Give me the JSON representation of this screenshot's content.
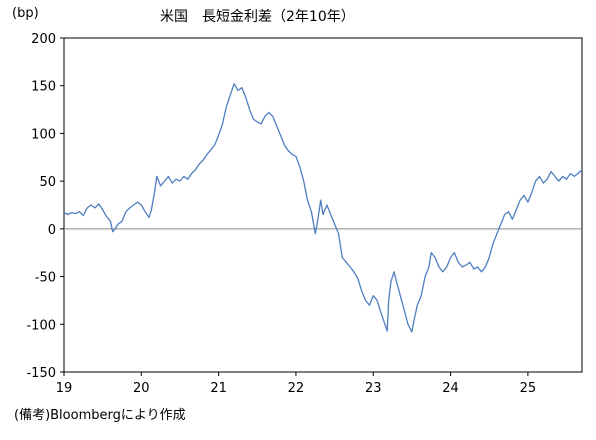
{
  "chart_data": {
    "type": "line",
    "title": "米国　長短金利差（2年10年）",
    "ylabel": "(bp)",
    "xlabel": "",
    "source": "(備考)Bloombergにより作成",
    "xlim": [
      2019.0,
      2025.7
    ],
    "ylim": [
      -150,
      200
    ],
    "yticks": [
      -150,
      -100,
      -50,
      0,
      50,
      100,
      150,
      200
    ],
    "xticks": [
      {
        "label": "19",
        "pos": 2019.0
      },
      {
        "label": "20",
        "pos": 2020.0
      },
      {
        "label": "21",
        "pos": 2021.0
      },
      {
        "label": "22",
        "pos": 2022.0
      },
      {
        "label": "23",
        "pos": 2023.0
      },
      {
        "label": "24",
        "pos": 2024.0
      },
      {
        "label": "25",
        "pos": 2025.0
      }
    ],
    "grid": false,
    "zero_line": true,
    "line_color": "#4F7EBE",
    "axis_color": "#000000",
    "zero_line_color": "#888888",
    "series": [
      {
        "values": [
          [
            2019.0,
            17
          ],
          [
            2019.05,
            15
          ],
          [
            2019.1,
            17
          ],
          [
            2019.15,
            16
          ],
          [
            2019.2,
            18
          ],
          [
            2019.25,
            14
          ],
          [
            2019.3,
            22
          ],
          [
            2019.35,
            25
          ],
          [
            2019.4,
            22
          ],
          [
            2019.45,
            26
          ],
          [
            2019.5,
            20
          ],
          [
            2019.55,
            13
          ],
          [
            2019.6,
            8
          ],
          [
            2019.63,
            -3
          ],
          [
            2019.66,
            0
          ],
          [
            2019.7,
            5
          ],
          [
            2019.75,
            8
          ],
          [
            2019.8,
            18
          ],
          [
            2019.85,
            22
          ],
          [
            2019.9,
            25
          ],
          [
            2019.95,
            28
          ],
          [
            2020.0,
            25
          ],
          [
            2020.05,
            18
          ],
          [
            2020.1,
            12
          ],
          [
            2020.13,
            20
          ],
          [
            2020.17,
            38
          ],
          [
            2020.2,
            55
          ],
          [
            2020.25,
            45
          ],
          [
            2020.3,
            50
          ],
          [
            2020.35,
            55
          ],
          [
            2020.4,
            48
          ],
          [
            2020.45,
            52
          ],
          [
            2020.5,
            50
          ],
          [
            2020.55,
            55
          ],
          [
            2020.6,
            52
          ],
          [
            2020.65,
            58
          ],
          [
            2020.7,
            62
          ],
          [
            2020.75,
            68
          ],
          [
            2020.8,
            72
          ],
          [
            2020.85,
            78
          ],
          [
            2020.9,
            83
          ],
          [
            2020.95,
            88
          ],
          [
            2021.0,
            98
          ],
          [
            2021.05,
            110
          ],
          [
            2021.1,
            128
          ],
          [
            2021.15,
            140
          ],
          [
            2021.2,
            152
          ],
          [
            2021.25,
            145
          ],
          [
            2021.3,
            148
          ],
          [
            2021.35,
            138
          ],
          [
            2021.4,
            125
          ],
          [
            2021.45,
            115
          ],
          [
            2021.5,
            112
          ],
          [
            2021.55,
            110
          ],
          [
            2021.6,
            118
          ],
          [
            2021.65,
            122
          ],
          [
            2021.7,
            118
          ],
          [
            2021.75,
            108
          ],
          [
            2021.8,
            98
          ],
          [
            2021.85,
            88
          ],
          [
            2021.9,
            82
          ],
          [
            2021.95,
            78
          ],
          [
            2022.0,
            76
          ],
          [
            2022.05,
            65
          ],
          [
            2022.1,
            50
          ],
          [
            2022.15,
            30
          ],
          [
            2022.2,
            18
          ],
          [
            2022.25,
            -5
          ],
          [
            2022.28,
            8
          ],
          [
            2022.32,
            30
          ],
          [
            2022.35,
            15
          ],
          [
            2022.4,
            25
          ],
          [
            2022.45,
            15
          ],
          [
            2022.5,
            5
          ],
          [
            2022.55,
            -5
          ],
          [
            2022.6,
            -30
          ],
          [
            2022.65,
            -35
          ],
          [
            2022.7,
            -40
          ],
          [
            2022.75,
            -45
          ],
          [
            2022.8,
            -52
          ],
          [
            2022.85,
            -65
          ],
          [
            2022.9,
            -75
          ],
          [
            2022.95,
            -80
          ],
          [
            2023.0,
            -70
          ],
          [
            2023.05,
            -75
          ],
          [
            2023.1,
            -88
          ],
          [
            2023.15,
            -100
          ],
          [
            2023.18,
            -107
          ],
          [
            2023.2,
            -75
          ],
          [
            2023.23,
            -55
          ],
          [
            2023.27,
            -45
          ],
          [
            2023.3,
            -55
          ],
          [
            2023.35,
            -70
          ],
          [
            2023.4,
            -85
          ],
          [
            2023.45,
            -100
          ],
          [
            2023.5,
            -108
          ],
          [
            2023.53,
            -95
          ],
          [
            2023.57,
            -80
          ],
          [
            2023.62,
            -70
          ],
          [
            2023.67,
            -50
          ],
          [
            2023.72,
            -40
          ],
          [
            2023.75,
            -25
          ],
          [
            2023.8,
            -30
          ],
          [
            2023.85,
            -40
          ],
          [
            2023.9,
            -45
          ],
          [
            2023.95,
            -40
          ],
          [
            2024.0,
            -30
          ],
          [
            2024.05,
            -25
          ],
          [
            2024.1,
            -35
          ],
          [
            2024.15,
            -40
          ],
          [
            2024.2,
            -38
          ],
          [
            2024.25,
            -35
          ],
          [
            2024.3,
            -42
          ],
          [
            2024.35,
            -40
          ],
          [
            2024.4,
            -45
          ],
          [
            2024.45,
            -40
          ],
          [
            2024.5,
            -30
          ],
          [
            2024.55,
            -15
          ],
          [
            2024.6,
            -5
          ],
          [
            2024.65,
            5
          ],
          [
            2024.7,
            15
          ],
          [
            2024.75,
            18
          ],
          [
            2024.8,
            10
          ],
          [
            2024.85,
            20
          ],
          [
            2024.9,
            30
          ],
          [
            2024.95,
            35
          ],
          [
            2025.0,
            28
          ],
          [
            2025.05,
            38
          ],
          [
            2025.1,
            50
          ],
          [
            2025.15,
            55
          ],
          [
            2025.2,
            48
          ],
          [
            2025.25,
            52
          ],
          [
            2025.3,
            60
          ],
          [
            2025.35,
            55
          ],
          [
            2025.4,
            50
          ],
          [
            2025.45,
            55
          ],
          [
            2025.5,
            52
          ],
          [
            2025.55,
            58
          ],
          [
            2025.6,
            55
          ],
          [
            2025.65,
            58
          ],
          [
            2025.7,
            62
          ]
        ]
      }
    ]
  }
}
